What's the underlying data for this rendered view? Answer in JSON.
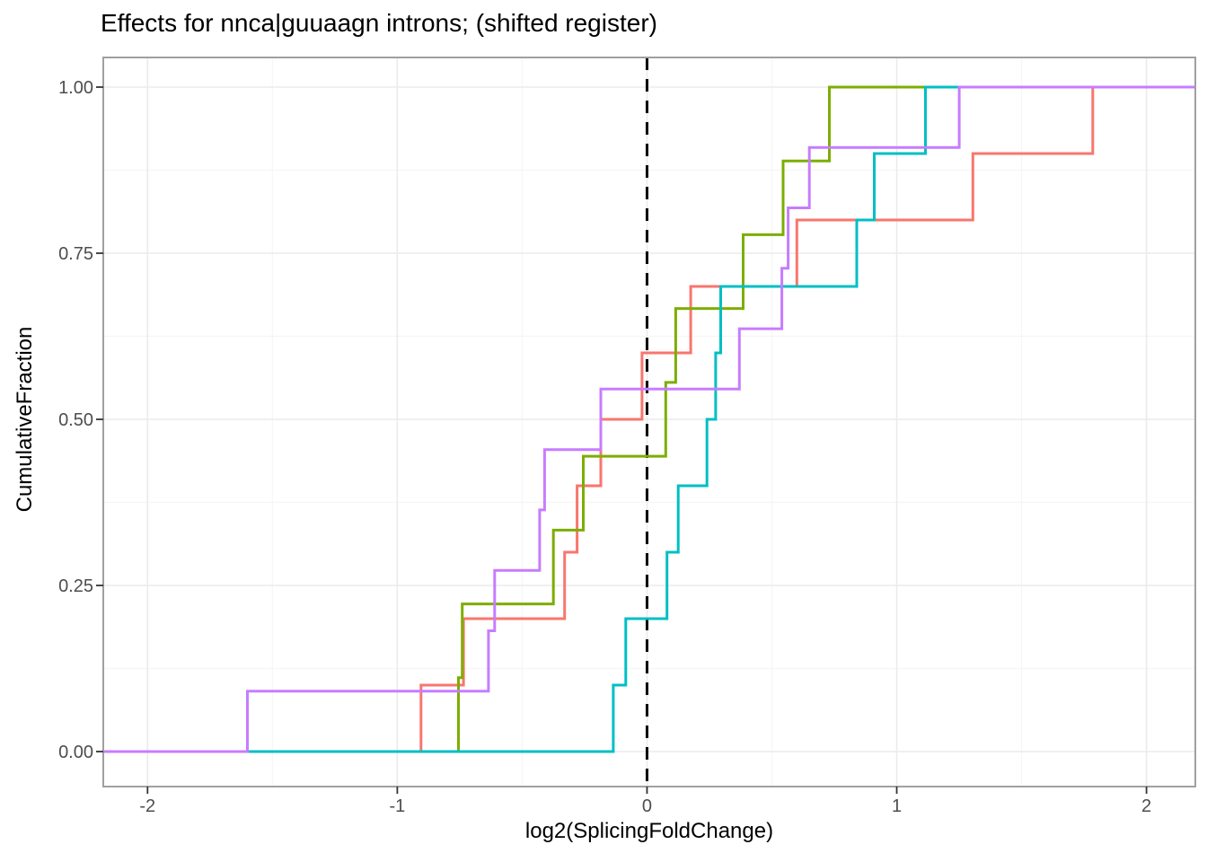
{
  "chart_data": {
    "type": "step",
    "subtype": "ecdf",
    "title": "Effects for nnca|guuaagn introns; (shifted register)",
    "xlabel": "log2(SplicingFoldChange)",
    "ylabel": "CumulativeFraction",
    "x_domain": [
      -2.1773,
      2.1956
    ],
    "y_domain": [
      -0.0527,
      1.0446
    ],
    "x_ticks": {
      "values": [
        -2,
        -1,
        0,
        1,
        2
      ],
      "labels": [
        "-2",
        "-1",
        "0",
        "1",
        "2"
      ]
    },
    "y_ticks": {
      "values": [
        0,
        0.25,
        0.5,
        0.75,
        1
      ],
      "labels": [
        "0.00",
        "0.25",
        "0.50",
        "0.75",
        "1.00"
      ]
    },
    "x_minor": [
      -1.5,
      -0.5,
      0.5,
      1.5
    ],
    "y_minor": [
      0.125,
      0.375,
      0.625,
      0.875
    ],
    "grid": true,
    "legend": "none",
    "vline": {
      "x": 0,
      "style": "dashed",
      "color": "#000000"
    },
    "series": [
      {
        "name": "salmon",
        "color": "#F8766D",
        "n": 10,
        "points": [
          [
            -0.905,
            0.1
          ],
          [
            -0.735,
            0.2
          ],
          [
            -0.33,
            0.3
          ],
          [
            -0.28,
            0.4
          ],
          [
            -0.185,
            0.5
          ],
          [
            -0.02,
            0.6
          ],
          [
            0.175,
            0.7
          ],
          [
            0.6,
            0.8
          ],
          [
            1.305,
            0.9
          ],
          [
            1.785,
            1.0
          ]
        ]
      },
      {
        "name": "olive",
        "color": "#7CAE00",
        "n": 9,
        "points": [
          [
            -0.755,
            0.1111
          ],
          [
            -0.74,
            0.2222
          ],
          [
            -0.375,
            0.3333
          ],
          [
            -0.255,
            0.4444
          ],
          [
            0.075,
            0.5556
          ],
          [
            0.115,
            0.6667
          ],
          [
            0.385,
            0.7778
          ],
          [
            0.545,
            0.8889
          ],
          [
            0.73,
            1.0
          ]
        ]
      },
      {
        "name": "teal",
        "color": "#00BFC4",
        "n": 10,
        "points": [
          [
            -0.135,
            0.1
          ],
          [
            -0.085,
            0.2
          ],
          [
            0.08,
            0.3
          ],
          [
            0.125,
            0.4
          ],
          [
            0.24,
            0.5
          ],
          [
            0.275,
            0.6
          ],
          [
            0.295,
            0.7
          ],
          [
            0.84,
            0.8
          ],
          [
            0.91,
            0.9
          ],
          [
            1.115,
            1.0
          ]
        ]
      },
      {
        "name": "purple",
        "color": "#C77CFF",
        "n": 11,
        "points": [
          [
            -1.6,
            0.0909
          ],
          [
            -0.635,
            0.1818
          ],
          [
            -0.61,
            0.2727
          ],
          [
            -0.43,
            0.3636
          ],
          [
            -0.41,
            0.4545
          ],
          [
            -0.185,
            0.5455
          ],
          [
            0.37,
            0.6364
          ],
          [
            0.54,
            0.7273
          ],
          [
            0.565,
            0.8182
          ],
          [
            0.65,
            0.9091
          ],
          [
            1.25,
            1.0
          ]
        ]
      }
    ],
    "style": {
      "background": "#FFFFFF",
      "panel_border": "#A0A0A0",
      "grid_major": "#EBEBEB",
      "grid_minor": "#F5F5F5",
      "tick_color": "#333333",
      "tick_label_color": "#4D4D4D",
      "title_color": "#000000",
      "axis_title_color": "#000000",
      "line_width": 3
    }
  }
}
